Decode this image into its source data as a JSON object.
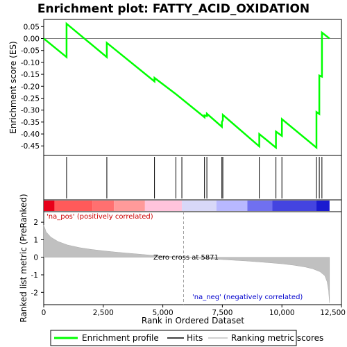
{
  "title": "Enrichment plot: FATTY_ACID_OXIDATION",
  "colors": {
    "profile": "#00ff00",
    "hits": "#000000",
    "ranking_fill": "#c0c0c0",
    "pos_text": "#cc0000",
    "neg_text": "#0000cc"
  },
  "chart_data": [
    {
      "type": "line",
      "panel": "enrichment-profile",
      "ylabel": "Enrichment score (ES)",
      "ylim": [
        -0.49,
        0.08
      ],
      "yticks": [
        0.05,
        0.0,
        -0.05,
        -0.1,
        -0.15,
        -0.2,
        -0.25,
        -0.3,
        -0.35,
        -0.4,
        -0.45
      ],
      "ytick_labels": [
        "0.05",
        "0.00",
        "-0.05",
        "-0.10",
        "-0.15",
        "-0.20",
        "-0.25",
        "-0.30",
        "-0.35",
        "-0.40",
        "-0.45"
      ],
      "xlim": [
        0,
        12500
      ],
      "series": [
        {
          "name": "Enrichment profile",
          "x": [
            0,
            960,
            960,
            2650,
            2650,
            4650,
            4650,
            5550,
            5550,
            6750,
            6750,
            6850,
            6850,
            7480,
            7480,
            7520,
            7520,
            9050,
            9050,
            9750,
            9750,
            10000,
            10000,
            11450,
            11450,
            11570,
            11570,
            11680,
            11680,
            12000
          ],
          "y": [
            0.0,
            -0.078,
            0.062,
            -0.078,
            -0.018,
            -0.18,
            -0.165,
            -0.233,
            -0.233,
            -0.33,
            -0.322,
            -0.325,
            -0.315,
            -0.37,
            -0.35,
            -0.342,
            -0.32,
            -0.452,
            -0.4,
            -0.457,
            -0.39,
            -0.408,
            -0.338,
            -0.457,
            -0.308,
            -0.316,
            -0.155,
            -0.16,
            0.025,
            0.0
          ]
        }
      ]
    },
    {
      "type": "scatter",
      "panel": "hits",
      "series": [
        {
          "name": "Hits",
          "x": [
            960,
            2650,
            4650,
            5550,
            5800,
            6750,
            6850,
            7480,
            7520,
            9050,
            9750,
            10000,
            11450,
            11570,
            11680
          ]
        }
      ]
    },
    {
      "type": "area",
      "panel": "ranked-list-metric",
      "xlabel": "Rank in Ordered Dataset",
      "ylabel": "Ranked list metric (PreRanked)",
      "xlim": [
        0,
        12500
      ],
      "ylim": [
        -2.7,
        2.6
      ],
      "xticks": [
        0,
        2500,
        5000,
        7500,
        10000,
        12500
      ],
      "xtick_labels": [
        "0",
        "2,500",
        "5,000",
        "7,500",
        "10,000",
        "12,500"
      ],
      "yticks": [
        2,
        1,
        0,
        -1,
        -2
      ],
      "ytick_labels": [
        "2",
        "1",
        "0",
        "-1",
        "-2"
      ],
      "series": [
        {
          "name": "Ranking metric scores",
          "x": [
            0,
            100,
            300,
            600,
            1000,
            1500,
            2000,
            2500,
            3000,
            3500,
            4000,
            4500,
            5000,
            5500,
            5871,
            6500,
            7000,
            7500,
            8000,
            8500,
            9000,
            9500,
            10000,
            10500,
            11000,
            11300,
            11600,
            11800,
            11900,
            11960,
            12000
          ],
          "y": [
            1.85,
            1.45,
            1.15,
            0.9,
            0.7,
            0.55,
            0.45,
            0.37,
            0.3,
            0.24,
            0.18,
            0.12,
            0.07,
            0.03,
            0.0,
            -0.05,
            -0.09,
            -0.13,
            -0.17,
            -0.21,
            -0.26,
            -0.31,
            -0.37,
            -0.45,
            -0.56,
            -0.66,
            -0.82,
            -1.05,
            -1.4,
            -1.9,
            -2.6
          ]
        }
      ],
      "zero_cross": 5871
    }
  ],
  "annotations": {
    "pos_label": "'na_pos' (positively correlated)",
    "neg_label": "'na_neg' (negatively correlated)",
    "zero_cross_label": "Zero cross at 5871"
  },
  "legend": {
    "items": [
      {
        "label": "Enrichment profile",
        "color": "#00ff00"
      },
      {
        "label": "Hits",
        "color": "#000000"
      },
      {
        "label": "Ranking metric scores",
        "color": "#c0c0c0"
      }
    ]
  },
  "heatbar": {
    "segments": [
      {
        "from": 0,
        "to": 450,
        "color": "#e8001a"
      },
      {
        "from": 450,
        "to": 2050,
        "color": "#ff5a5a"
      },
      {
        "from": 2050,
        "to": 2950,
        "color": "#ff7070"
      },
      {
        "from": 2950,
        "to": 4250,
        "color": "#ff9a9a"
      },
      {
        "from": 4250,
        "to": 5800,
        "color": "#ffc4dc"
      },
      {
        "from": 5800,
        "to": 7250,
        "color": "#d8d8f8"
      },
      {
        "from": 7250,
        "to": 8550,
        "color": "#b8b8ff"
      },
      {
        "from": 8550,
        "to": 9600,
        "color": "#7070f0"
      },
      {
        "from": 9600,
        "to": 11450,
        "color": "#4444e0"
      },
      {
        "from": 11450,
        "to": 12000,
        "color": "#1a1ad0"
      }
    ]
  }
}
